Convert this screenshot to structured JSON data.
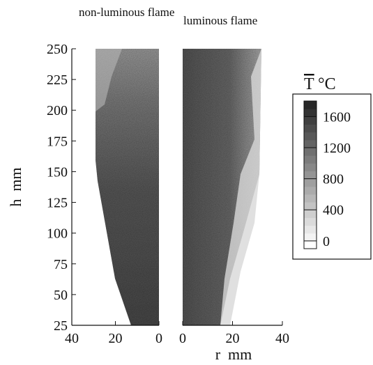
{
  "chart_data": [
    {
      "type": "contour",
      "title": "non-luminous flame",
      "ylabel": "h  mm",
      "xlim": [
        40,
        0
      ],
      "xticks": [
        40,
        20,
        0
      ],
      "ylim": [
        25,
        250
      ],
      "yticks": [
        25,
        50,
        75,
        100,
        125,
        150,
        175,
        200,
        225,
        250
      ]
    },
    {
      "type": "contour",
      "title": "luminous flame",
      "xlabel": "r  mm",
      "xlim": [
        0,
        40
      ],
      "xticks": [
        0,
        20,
        40
      ],
      "ylim": [
        25,
        250
      ]
    }
  ],
  "colorbar": {
    "label": "T",
    "unit": "°C",
    "lim": [
      -100,
      1800
    ],
    "ticks": [
      0,
      400,
      800,
      1200,
      1600
    ]
  }
}
